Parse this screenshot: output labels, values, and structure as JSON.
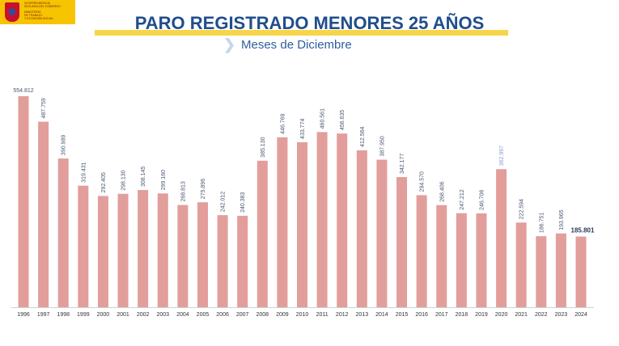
{
  "header": {
    "logo_lines": [
      "VICEPRESIDENCIA",
      "SEGUNDA DEL GOBIERNO",
      "MINISTERIO",
      "DE TRABAJO",
      "Y ECONOMÍA SOCIAL"
    ],
    "title": "PARO REGISTRADO MENORES 25 AÑOS",
    "subtitle": "Meses de Diciembre",
    "chevron_icon": "chevron-right-icon"
  },
  "colors": {
    "bar": "#e29e9b",
    "label": "#4a5670",
    "highlight_label": "#7f9fd4",
    "title": "#1f4e8c",
    "accent": "#f7d54a"
  },
  "chart_data": {
    "type": "bar",
    "title": "PARO REGISTRADO MENORES 25 AÑOS",
    "subtitle": "Meses de Diciembre",
    "categories": [
      "1996",
      "1997",
      "1998",
      "1999",
      "2000",
      "2001",
      "2002",
      "2003",
      "2004",
      "2005",
      "2006",
      "2007",
      "2008",
      "2009",
      "2010",
      "2011",
      "2012",
      "2013",
      "2014",
      "2015",
      "2016",
      "2017",
      "2018",
      "2019",
      "2020",
      "2021",
      "2022",
      "2023",
      "2024"
    ],
    "values": [
      554812,
      487759,
      390989,
      319431,
      292405,
      298130,
      308145,
      299160,
      268813,
      275896,
      242012,
      240383,
      385130,
      446769,
      433774,
      460561,
      456635,
      412564,
      387950,
      342177,
      294570,
      268406,
      247212,
      246706,
      362997,
      222594,
      186751,
      193965,
      185801
    ],
    "labels": [
      "554.812",
      "487.759",
      "390.989",
      "319.431",
      "292.405",
      "298.130",
      "308.145",
      "299.160",
      "268.813",
      "275.896",
      "242.012",
      "240.383",
      "385.130",
      "446.769",
      "433.774",
      "460.561",
      "456.635",
      "412.564",
      "387.950",
      "342.177",
      "294.570",
      "268.406",
      "247.212",
      "246.706",
      "362.997",
      "222.594",
      "186.751",
      "193.965",
      "185.801"
    ],
    "xlabel": "",
    "ylabel": "",
    "ylim": [
      0,
      560000
    ],
    "grid": false,
    "legend": "none"
  }
}
